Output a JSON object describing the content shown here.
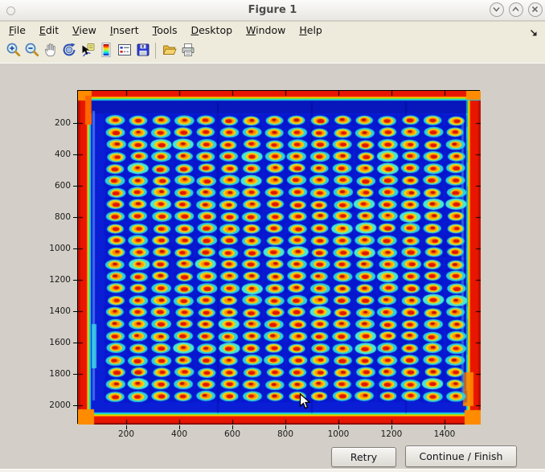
{
  "window": {
    "title": "Figure 1",
    "controls": [
      {
        "name": "shade-button",
        "icon": "chevron-down-icon"
      },
      {
        "name": "maximize-button",
        "icon": "chevron-up-icon"
      },
      {
        "name": "close-button",
        "icon": "close-icon"
      }
    ]
  },
  "menubar": {
    "items": [
      {
        "label": "File",
        "key": "F",
        "rest": "ile"
      },
      {
        "label": "Edit",
        "key": "E",
        "rest": "dit"
      },
      {
        "label": "View",
        "key": "V",
        "rest": "iew"
      },
      {
        "label": "Insert",
        "key": "I",
        "rest": "nsert"
      },
      {
        "label": "Tools",
        "key": "T",
        "rest": "ools"
      },
      {
        "label": "Desktop",
        "key": "D",
        "rest": "esktop"
      },
      {
        "label": "Window",
        "key": "W",
        "rest": "indow"
      },
      {
        "label": "Help",
        "key": "H",
        "rest": "elp"
      }
    ],
    "dock_icon": "dock-arrow-icon"
  },
  "toolbar": {
    "items": [
      "zoom-in-icon",
      "zoom-out-icon",
      "pan-hand-icon",
      "rotate-3d-icon",
      "data-cursor-icon",
      "colorbar-icon",
      "legend-icon",
      "save-icon",
      "separator",
      "open-folder-icon",
      "print-icon"
    ]
  },
  "axes": {
    "x_ticks": [
      "200",
      "400",
      "600",
      "800",
      "1000",
      "1200",
      "1400"
    ],
    "y_ticks": [
      "200",
      "400",
      "600",
      "800",
      "1000",
      "1200",
      "1400",
      "1600",
      "1800",
      "2000"
    ]
  },
  "figure_image": {
    "type": "heatmap-image",
    "description": "Jet-colormap scan of a 384-well microplate: 16 columns x 24 rows of spots with red centers, yellow-orange rings and cyan halos on a royal-blue background, framed by a red border with orange corners",
    "grid": {
      "rows": 24,
      "cols": 16
    },
    "colors": {
      "background_blue": "#0a1ed6",
      "halo_cyan": "#2ad2e2",
      "halo_bright_cyan": "#46e8d8",
      "ring_yellow": "#ffd400",
      "ring_orange": "#ff9000",
      "spot_red": "#e01600",
      "spot_dark_red": "#c51100",
      "border_red": "#e81600",
      "border_dark_red": "#c01000",
      "border_maroon": "#8a0a00",
      "corner_orange": "#ff8c00",
      "edge_green": "#80e800"
    },
    "seed": 1337
  },
  "action_buttons": {
    "retry": "Retry",
    "continue": "Continue / Finish"
  }
}
